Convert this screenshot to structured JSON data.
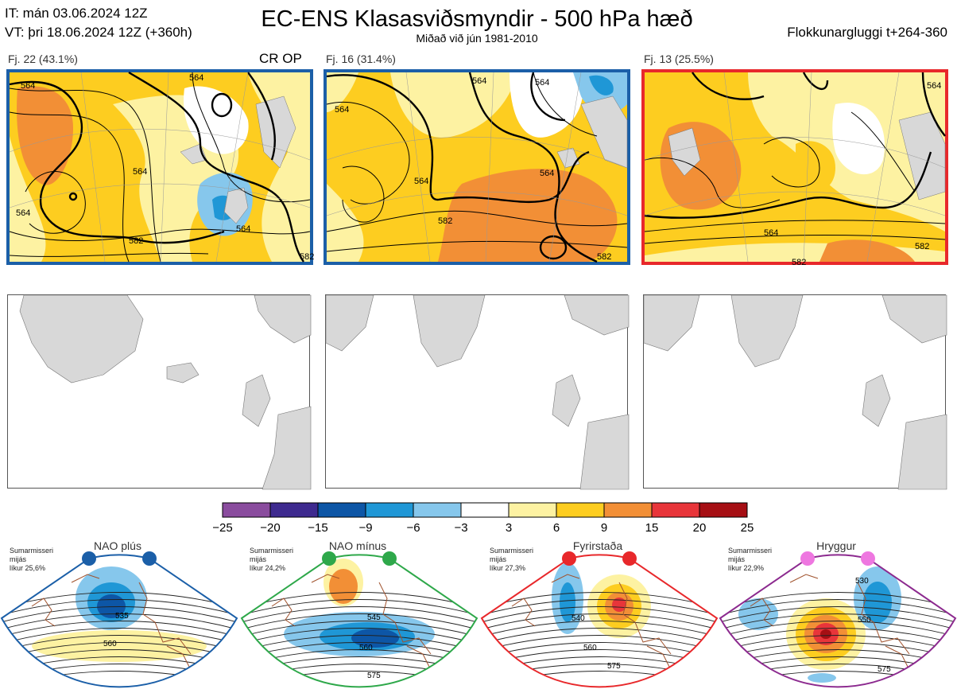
{
  "header": {
    "it_line": "IT: mán 03.06.2024 12Z",
    "vt_line": "VT: þri 18.06.2024 12Z  (+360h)",
    "title": "EC-ENS Klasasviðsmyndir - 500 hPa hæð",
    "subtitle": "Miðað við jún 1981-2010",
    "window": "Flokkunargluggi t+264-360"
  },
  "panels": [
    {
      "label": "Fj. 22 (43.1%)",
      "tag": "CR OP",
      "frame_color": "#1b5fa8"
    },
    {
      "label": "Fj. 16 (31.4%)",
      "tag": "",
      "frame_color": "#1b5fa8"
    },
    {
      "label": "Fj. 13 (25.5%)",
      "tag": "",
      "frame_color": "#e8282b"
    }
  ],
  "contour_labels": {
    "panel1": [
      "564",
      "564",
      "564",
      "564",
      "582",
      "564",
      "582"
    ],
    "panel2": [
      "564",
      "564",
      "564",
      "564",
      "582",
      "564",
      "582"
    ],
    "panel3": [
      "564",
      "564",
      "582",
      "582"
    ]
  },
  "colors": {
    "land": "#d8d8d8",
    "blue_frame": "#1b5fa8",
    "red_frame": "#e8282b"
  },
  "chart_data": {
    "type": "heatmap",
    "title": "EC-ENS Klasasviðsmyndir - 500 hPa hæð",
    "colorbar": {
      "ticks": [
        "−25",
        "−20",
        "−15",
        "−9",
        "−6",
        "−3",
        "3",
        "6",
        "9",
        "15",
        "20",
        "25"
      ],
      "colors": [
        "#8a4c9e",
        "#3e2a8f",
        "#0d56a6",
        "#1f97d6",
        "#86c7ec",
        "#ffffff",
        "#fdf2a2",
        "#fdcd20",
        "#f28f36",
        "#e8353a",
        "#a60f14"
      ]
    },
    "clusters": [
      {
        "name": "Fj. 22",
        "percent": 43.1
      },
      {
        "name": "Fj. 16",
        "percent": 31.4
      },
      {
        "name": "Fj. 13",
        "percent": 25.5
      }
    ],
    "regimes": [
      {
        "name": "NAO plús",
        "note": [
          "Sumarmisseri",
          "mijás",
          "líkur 25,6%"
        ],
        "percent": 25.6,
        "frame": "#1b5fa8",
        "dot": "#1b5fa8",
        "labels": [
          "535",
          "560"
        ]
      },
      {
        "name": "NAO mínus",
        "note": [
          "Sumarmisseri",
          "mijás",
          "líkur 24,2%"
        ],
        "percent": 24.2,
        "frame": "#2ea84a",
        "dot": "#2ea84a",
        "labels": [
          "545",
          "560",
          "575"
        ]
      },
      {
        "name": "Fyrirstaða",
        "note": [
          "Sumarmisseri",
          "mijás",
          "líkur 27,3%"
        ],
        "percent": 27.3,
        "frame": "#e8282b",
        "dot": "#e8282b",
        "labels": [
          "540",
          "560",
          "575"
        ]
      },
      {
        "name": "Hryggur",
        "note": [
          "Sumarmisseri",
          "mijás",
          "líkur 22,9%"
        ],
        "percent": 22.9,
        "frame": "#8c2a8f",
        "dot": "#ee77e0",
        "labels": [
          "530",
          "550",
          "575"
        ]
      }
    ]
  }
}
